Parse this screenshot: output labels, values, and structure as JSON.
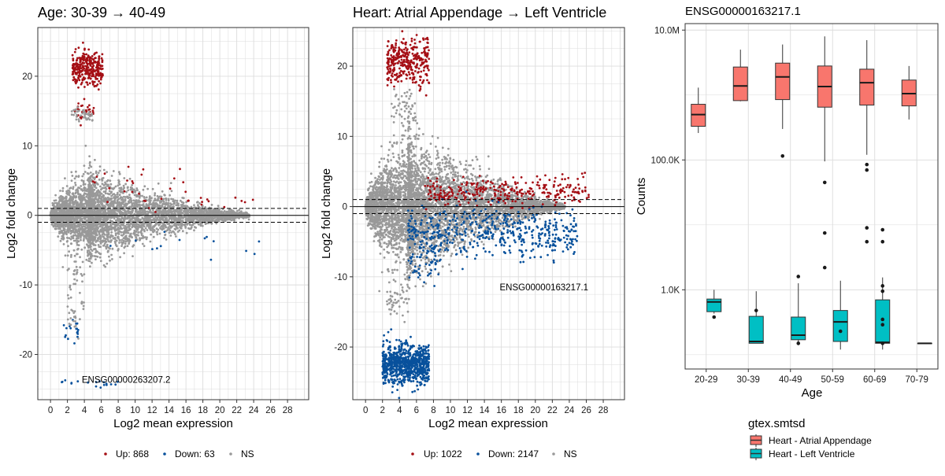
{
  "chart_data": [
    {
      "type": "scatter",
      "title": "Age: 30-39 → 40-49",
      "xlabel": "Log2 mean expression",
      "ylabel": "Log2 fold change",
      "xlim": [
        -1.5,
        30.5
      ],
      "ylim": [
        -26.5,
        27
      ],
      "xticks": [
        "0",
        "2",
        "4",
        "6",
        "8",
        "10",
        "12",
        "14",
        "16",
        "18",
        "20",
        "22",
        "24",
        "26",
        "28"
      ],
      "yticks": [
        "-20",
        "-10",
        "0",
        "10",
        "20"
      ],
      "grid": true,
      "legend_position": "bottom",
      "hlines": {
        "solid": 0,
        "dashed": [
          1,
          -1
        ]
      },
      "annotation": {
        "text": "ENSG00000263207.2",
        "x": 3.7,
        "y": -23.6
      },
      "legend": [
        {
          "label": "Up: 868",
          "color": "#a50f15"
        },
        {
          "label": "Down: 63",
          "color": "#08519c"
        },
        {
          "label": "NS",
          "color": "#999999"
        }
      ],
      "series": [
        {
          "name": "Up",
          "color": "#a50f15",
          "clusters": [
            {
              "xRange": [
                2.6,
                6.2
              ],
              "yCenter": 21,
              "ySd": 1.2,
              "n": 300
            },
            {
              "xRange": [
                2.8,
                5.2
              ],
              "yCenter": 15,
              "ySd": 0.7,
              "n": 30
            },
            {
              "xRange": [
                5,
                16
              ],
              "yCenter": 4,
              "ySd": 1.8,
              "n": 25
            },
            {
              "xRange": [
                16,
                24
              ],
              "yCenter": 2.0,
              "ySd": 0.5,
              "n": 12
            }
          ]
        },
        {
          "name": "Down",
          "color": "#08519c",
          "clusters": [
            {
              "xRange": [
                1.5,
                3.5
              ],
              "yCenter": -16,
              "ySd": 1.0,
              "n": 18
            },
            {
              "xRange": [
                1.2,
                8.2
              ],
              "yCenter": -24,
              "ySd": 0.4,
              "n": 18
            },
            {
              "xRange": [
                4,
                26
              ],
              "yCenter": -4,
              "ySd": 1.0,
              "n": 14
            }
          ]
        },
        {
          "name": "NS",
          "color": "#999999",
          "envelope": {
            "xStart": 0,
            "xPeak": 4.5,
            "xEnd": 23.5,
            "maxSpread": 6.8,
            "n": 4500
          },
          "clusters": [
            {
              "xRange": [
                2.5,
                5
              ],
              "yCenter": 14.5,
              "ySd": 0.5,
              "n": 40
            },
            {
              "xRange": [
                2,
                4
              ],
              "yCenter": -10,
              "ySd": 2.5,
              "n": 40
            },
            {
              "xRange": [
                2,
                3.5
              ],
              "yCenter": -15,
              "ySd": 1.2,
              "n": 15
            }
          ]
        }
      ]
    },
    {
      "type": "scatter",
      "title": "Heart: Atrial Appendage → Left Ventricle",
      "xlabel": "Log2 mean expression",
      "ylabel": "Log2 fold change",
      "xlim": [
        -1.5,
        30.5
      ],
      "ylim": [
        -27.5,
        25.5
      ],
      "xticks": [
        "0",
        "2",
        "4",
        "6",
        "8",
        "10",
        "12",
        "14",
        "16",
        "18",
        "20",
        "22",
        "24",
        "26",
        "28"
      ],
      "yticks": [
        "-20",
        "-10",
        "0",
        "10",
        "20"
      ],
      "grid": true,
      "legend_position": "bottom",
      "hlines": {
        "solid": 0,
        "dashed": [
          1,
          -1
        ]
      },
      "annotation": {
        "text": "ENSG00000163217.1",
        "x": 15.8,
        "y": -11.5
      },
      "legend": [
        {
          "label": "Up: 1022",
          "color": "#a50f15"
        },
        {
          "label": "Down: 2147",
          "color": "#08519c"
        },
        {
          "label": "NS",
          "color": "#999999"
        }
      ],
      "series": [
        {
          "name": "Up",
          "color": "#a50f15",
          "clusters": [
            {
              "xRange": [
                2.5,
                7.5
              ],
              "yCenter": 20.5,
              "ySd": 1.6,
              "n": 340
            },
            {
              "xRange": [
                7,
                26.5
              ],
              "yCenter": 2.2,
              "ySd": 1.0,
              "n": 300
            }
          ]
        },
        {
          "name": "Down",
          "color": "#08519c",
          "clusters": [
            {
              "xRange": [
                2,
                7.5
              ],
              "yCenter": -22.5,
              "ySd": 1.4,
              "n": 800
            },
            {
              "xRange": [
                5,
                25
              ],
              "yCenter": -3.6,
              "ySd": 1.8,
              "n": 500
            },
            {
              "xRange": [
                5,
                9
              ],
              "yCenter": -7.5,
              "ySd": 1.4,
              "n": 60
            }
          ]
        },
        {
          "name": "NS",
          "color": "#999999",
          "envelope": {
            "xStart": 0,
            "xPeak": 5,
            "xEnd": 23.5,
            "maxSpread": 11,
            "n": 5500
          },
          "clusters": [
            {
              "xRange": [
                3,
                6
              ],
              "yCenter": 14,
              "ySd": 1.0,
              "n": 50
            },
            {
              "xRange": [
                2.5,
                5
              ],
              "yCenter": -13,
              "ySd": 1.5,
              "n": 50
            }
          ]
        }
      ]
    },
    {
      "type": "box",
      "title": "ENSG00000163217.1",
      "xlabel": "Age",
      "ylabel": "Counts",
      "yscale": "log10",
      "ylim_log10": [
        1.78,
        7.1
      ],
      "yticks": [
        {
          "label": "1.0K",
          "value": 1000
        },
        {
          "label": "100.0K",
          "value": 100000
        },
        {
          "label": "10.0M",
          "value": 10000000
        }
      ],
      "categories": [
        "20-29",
        "30-39",
        "40-49",
        "50-59",
        "60-69",
        "70-79"
      ],
      "grid": true,
      "legend_title": "gtex.smtsd",
      "legend_position": "bottom",
      "series": [
        {
          "name": "Heart - Atrial Appendage",
          "color": "#f8766d",
          "boxes": [
            {
              "cat": "20-29",
              "min": 260000,
              "q1": 330000,
              "median": 500000,
              "q3": 720000,
              "max": 1300000,
              "outliers": []
            },
            {
              "cat": "30-39",
              "min": 800000,
              "q1": 820000,
              "median": 1380000,
              "q3": 2700000,
              "max": 5000000,
              "outliers": []
            },
            {
              "cat": "40-49",
              "min": 300000,
              "q1": 850000,
              "median": 1900000,
              "q3": 3100000,
              "max": 6000000,
              "outliers": [
                115000
              ]
            },
            {
              "cat": "50-59",
              "min": 95000,
              "q1": 650000,
              "median": 1350000,
              "q3": 2800000,
              "max": 8000000,
              "outliers": [
                45000,
                2200,
                7500
              ]
            },
            {
              "cat": "60-69",
              "min": 120000,
              "q1": 700000,
              "median": 1550000,
              "q3": 2500000,
              "max": 7000000,
              "outliers": [
                85000,
                70000,
                9000,
                5500
              ]
            },
            {
              "cat": "70-79",
              "min": 420000,
              "q1": 680000,
              "median": 1050000,
              "q3": 1700000,
              "max": 2800000,
              "outliers": []
            }
          ]
        },
        {
          "name": "Heart - Left Ventricle",
          "color": "#00bfc4",
          "boxes": [
            {
              "cat": "20-29",
              "min": 430,
              "q1": 460,
              "median": 650,
              "q3": 720,
              "max": 1000,
              "outliers": [
                380
              ]
            },
            {
              "cat": "30-39",
              "min": 150,
              "q1": 150,
              "median": 160,
              "q3": 390,
              "max": 950,
              "outliers": [
                480
              ]
            },
            {
              "cat": "40-49",
              "min": 140,
              "q1": 170,
              "median": 200,
              "q3": 380,
              "max": 1260,
              "outliers": [
                1600,
                150
              ]
            },
            {
              "cat": "50-59",
              "min": 120,
              "q1": 160,
              "median": 320,
              "q3": 480,
              "max": 1380,
              "outliers": [
                230
              ]
            },
            {
              "cat": "60-69",
              "min": 120,
              "q1": 150,
              "median": 155,
              "q3": 700,
              "max": 1550,
              "outliers": [
                8400,
                5500,
                1150,
                950,
                350,
                290,
                150
              ]
            },
            {
              "cat": "70-79",
              "min": 150,
              "q1": 150,
              "median": 150,
              "q3": 150,
              "max": 150,
              "outliers": []
            }
          ]
        }
      ]
    }
  ]
}
